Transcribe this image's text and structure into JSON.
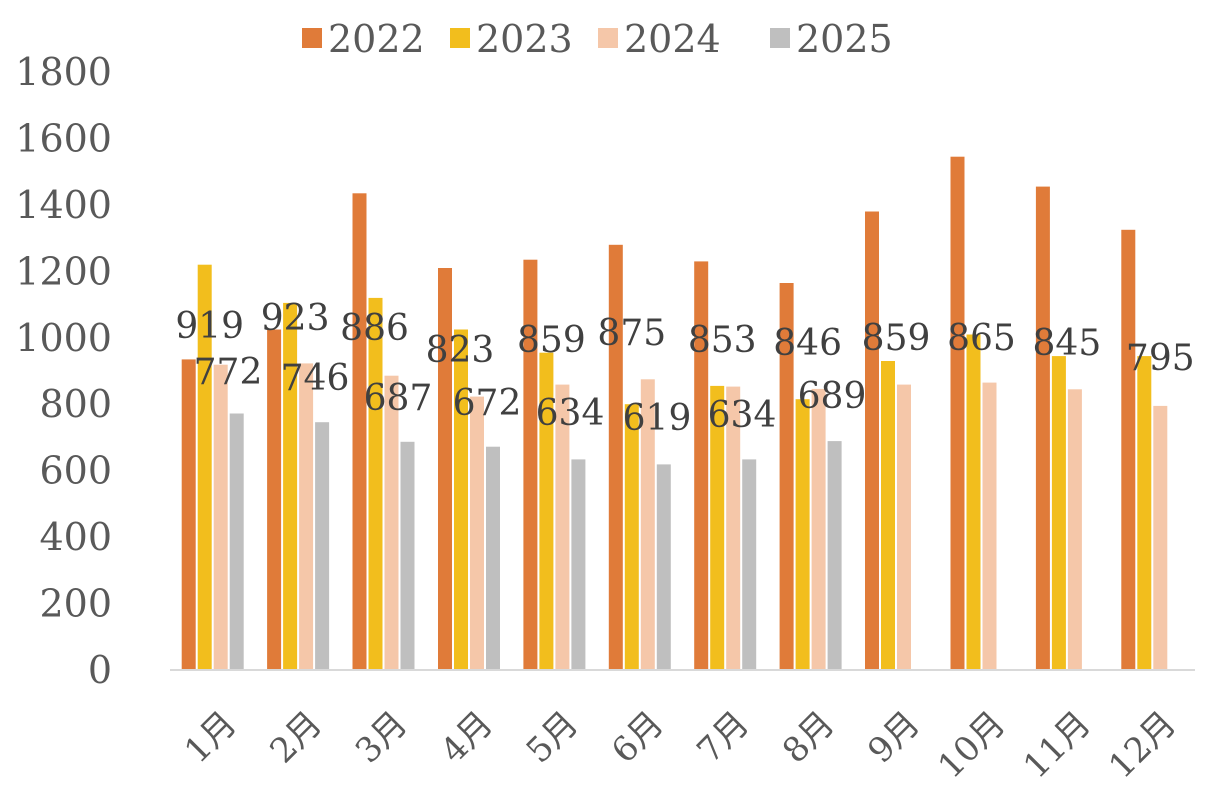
{
  "chart_data": {
    "type": "bar",
    "categories": [
      "1月",
      "2月",
      "3月",
      "4月",
      "5月",
      "6月",
      "7月",
      "8月",
      "9月",
      "10月",
      "11月",
      "12月"
    ],
    "series": [
      {
        "name": "2022",
        "color": "#E07B39",
        "values": [
          935,
          1025,
          1435,
          1210,
          1235,
          1280,
          1230,
          1165,
          1380,
          1545,
          1455,
          1325
        ]
      },
      {
        "name": "2023",
        "color": "#F2BE1D",
        "values": [
          1220,
          1105,
          1120,
          1025,
          955,
          800,
          855,
          815,
          930,
          1010,
          945,
          945
        ]
      },
      {
        "name": "2024",
        "color": "#F5C7A9",
        "values": [
          919,
          923,
          886,
          823,
          859,
          875,
          853,
          846,
          859,
          865,
          845,
          795
        ]
      },
      {
        "name": "2025",
        "color": "#BFBFBF",
        "values": [
          772,
          746,
          687,
          672,
          634,
          619,
          634,
          689,
          null,
          null,
          null,
          null
        ]
      }
    ],
    "data_labels": {
      "2024": [
        "919",
        "923",
        "886",
        "823",
        "859",
        "875",
        "853",
        "846",
        "859",
        "865",
        "845",
        "795"
      ],
      "2025": [
        "772",
        "746",
        "687",
        "672",
        "634",
        "619",
        "634",
        "689"
      ]
    },
    "ylim": [
      0,
      1800
    ],
    "y_ticks": [
      0,
      200,
      400,
      600,
      800,
      1000,
      1200,
      1400,
      1600,
      1800
    ],
    "legend": {
      "placement": "top",
      "labels": [
        "2022",
        "2023",
        "2024",
        "2025"
      ]
    },
    "grid": false
  }
}
